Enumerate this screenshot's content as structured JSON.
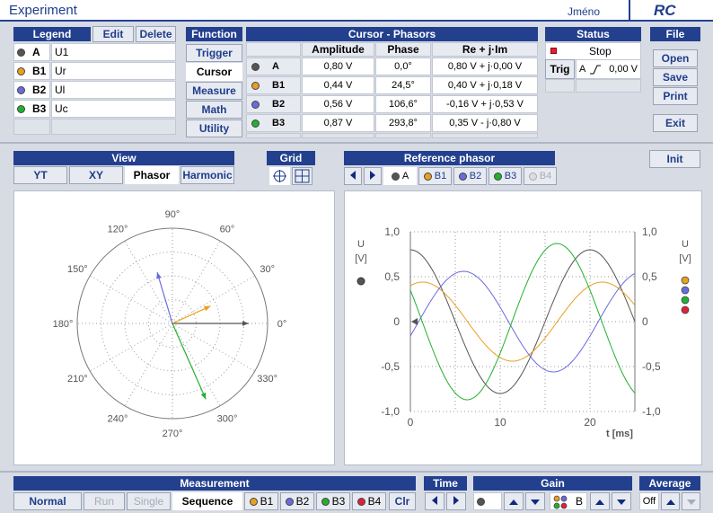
{
  "title": {
    "app": "Experiment",
    "user": "Jméno",
    "logo": "RC"
  },
  "legend": {
    "header": "Legend",
    "edit": "Edit",
    "delete": "Delete",
    "rows": [
      {
        "name": "A",
        "label": "U1",
        "color": "#555555"
      },
      {
        "name": "B1",
        "label": "Ur",
        "color": "#e8a020"
      },
      {
        "name": "B2",
        "label": "Ul",
        "color": "#6a6ae0"
      },
      {
        "name": "B3",
        "label": "Uc",
        "color": "#22b030"
      }
    ]
  },
  "function": {
    "header": "Function",
    "items": [
      "Trigger",
      "Cursor",
      "Measure",
      "Math",
      "Utility"
    ],
    "selected": "Cursor"
  },
  "cursor": {
    "header": "Cursor - Phasors",
    "columns": [
      "Amplitude",
      "Phase",
      "Re + j·Im"
    ],
    "rows": [
      {
        "name": "A",
        "amp": "0,80 V",
        "phase": "0,0°",
        "re": "0,80 V + j·0,00 V"
      },
      {
        "name": "B1",
        "amp": "0,44 V",
        "phase": "24,5°",
        "re": "0,40 V + j·0,18 V"
      },
      {
        "name": "B2",
        "amp": "0,56 V",
        "phase": "106,6°",
        "re": "-0,16 V + j·0,53 V"
      },
      {
        "name": "B3",
        "amp": "0,87 V",
        "phase": "293,8°",
        "re": "0,35 V - j·0,80 V"
      }
    ]
  },
  "status": {
    "header": "Status",
    "state": "Stop",
    "trig": "Trig",
    "trig_channel": "A",
    "trig_level": "0,00 V"
  },
  "file": {
    "header": "File",
    "open": "Open",
    "save": "Save",
    "print": "Print",
    "exit": "Exit"
  },
  "view": {
    "header": "View",
    "items": [
      "YT",
      "XY",
      "Phasor",
      "Harmonic"
    ],
    "selected": "Phasor"
  },
  "grid": {
    "header": "Grid"
  },
  "reference": {
    "header": "Reference phasor",
    "items": [
      "A",
      "B1",
      "B2",
      "B3",
      "B4"
    ],
    "selected": "A"
  },
  "init": "Init",
  "polar": {
    "angles": [
      "90°",
      "60°",
      "30°",
      "0°",
      "330°",
      "300°",
      "270°",
      "240°",
      "210°",
      "180°",
      "150°",
      "120°"
    ]
  },
  "chart_data": {
    "type": "line",
    "xlabel": "t [ms]",
    "ylabel": "U\n[V]",
    "xlim": [
      0,
      25
    ],
    "ylim": [
      -1.0,
      1.0
    ],
    "xticks": [
      "0",
      "10",
      "20"
    ],
    "yticks": [
      "1,0",
      "0,5",
      "0",
      "-0,5",
      "-1,0"
    ],
    "period_ms": 20,
    "series": [
      {
        "name": "A",
        "amplitude": 0.8,
        "phase_deg": 0.0,
        "color": "#555555"
      },
      {
        "name": "B1",
        "amplitude": 0.44,
        "phase_deg": 24.5,
        "color": "#e8a020"
      },
      {
        "name": "B2",
        "amplitude": 0.56,
        "phase_deg": 106.6,
        "color": "#6a6ae0"
      },
      {
        "name": "B3",
        "amplitude": 0.87,
        "phase_deg": 293.8,
        "color": "#22b030"
      }
    ]
  },
  "measurement": {
    "header": "Measurement",
    "items": [
      "Normal",
      "Run",
      "Single",
      "Sequence"
    ],
    "selected": "Sequence",
    "channels": [
      "B1",
      "B2",
      "B3",
      "B4"
    ],
    "clr": "Clr"
  },
  "time": {
    "header": "Time"
  },
  "gain": {
    "header": "Gain",
    "a": "A",
    "b": "B"
  },
  "average": {
    "header": "Average",
    "value": "Off"
  }
}
